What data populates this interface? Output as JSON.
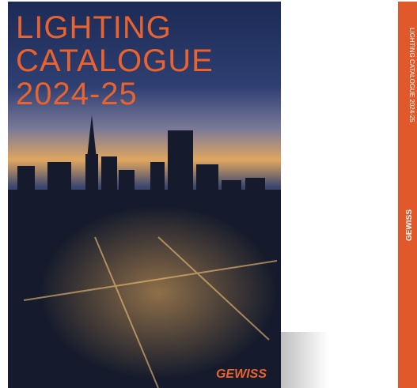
{
  "cover": {
    "title": [
      "LIGHTING",
      "CATALOGUE",
      "2024-25"
    ],
    "brand": "GEWISS"
  },
  "spine": {
    "text": "LIGHTING CATALOGUE 2024-25",
    "brand": "GEWISS"
  }
}
